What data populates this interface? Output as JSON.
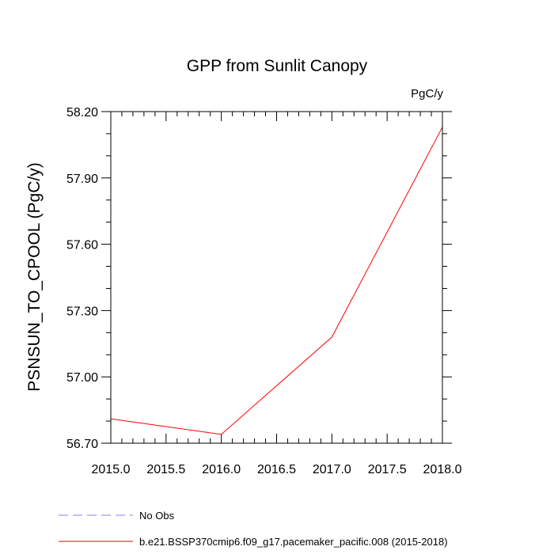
{
  "chart_data": {
    "type": "line",
    "title": "GPP from Sunlit Canopy",
    "units_label": "PgC/y",
    "ylabel": "PSNSUN_TO_CPOOL  (PgC/y)",
    "xlabel": "",
    "xlim": [
      2015.0,
      2018.0
    ],
    "ylim": [
      56.7,
      58.2
    ],
    "x_ticks": [
      2015.0,
      2015.5,
      2016.0,
      2016.5,
      2017.0,
      2017.5,
      2018.0
    ],
    "x_tick_labels": [
      "2015.0",
      "2015.5",
      "2016.0",
      "2016.5",
      "2017.0",
      "2017.5",
      "2018.0"
    ],
    "y_ticks": [
      56.7,
      57.0,
      57.3,
      57.6,
      57.9,
      58.2
    ],
    "y_tick_labels": [
      "56.70",
      "57.00",
      "57.30",
      "57.60",
      "57.90",
      "58.20"
    ],
    "grid": false,
    "series": [
      {
        "name": "b.e21.BSSP370cmip6.f09_g17.pacemaker_pacific.008 (2015-2018)",
        "color": "#ff0000",
        "dash": "solid",
        "x": [
          2015,
          2016,
          2017,
          2018
        ],
        "y": [
          56.81,
          56.74,
          57.18,
          58.13
        ]
      }
    ],
    "legend": {
      "placement": "bottom",
      "entries": [
        {
          "label": "No Obs",
          "color": "#8080ff",
          "dash": "dashed"
        },
        {
          "label": "b.e21.BSSP370cmip6.f09_g17.pacemaker_pacific.008 (2015-2018)",
          "color": "#ff0000",
          "dash": "solid"
        }
      ]
    }
  }
}
